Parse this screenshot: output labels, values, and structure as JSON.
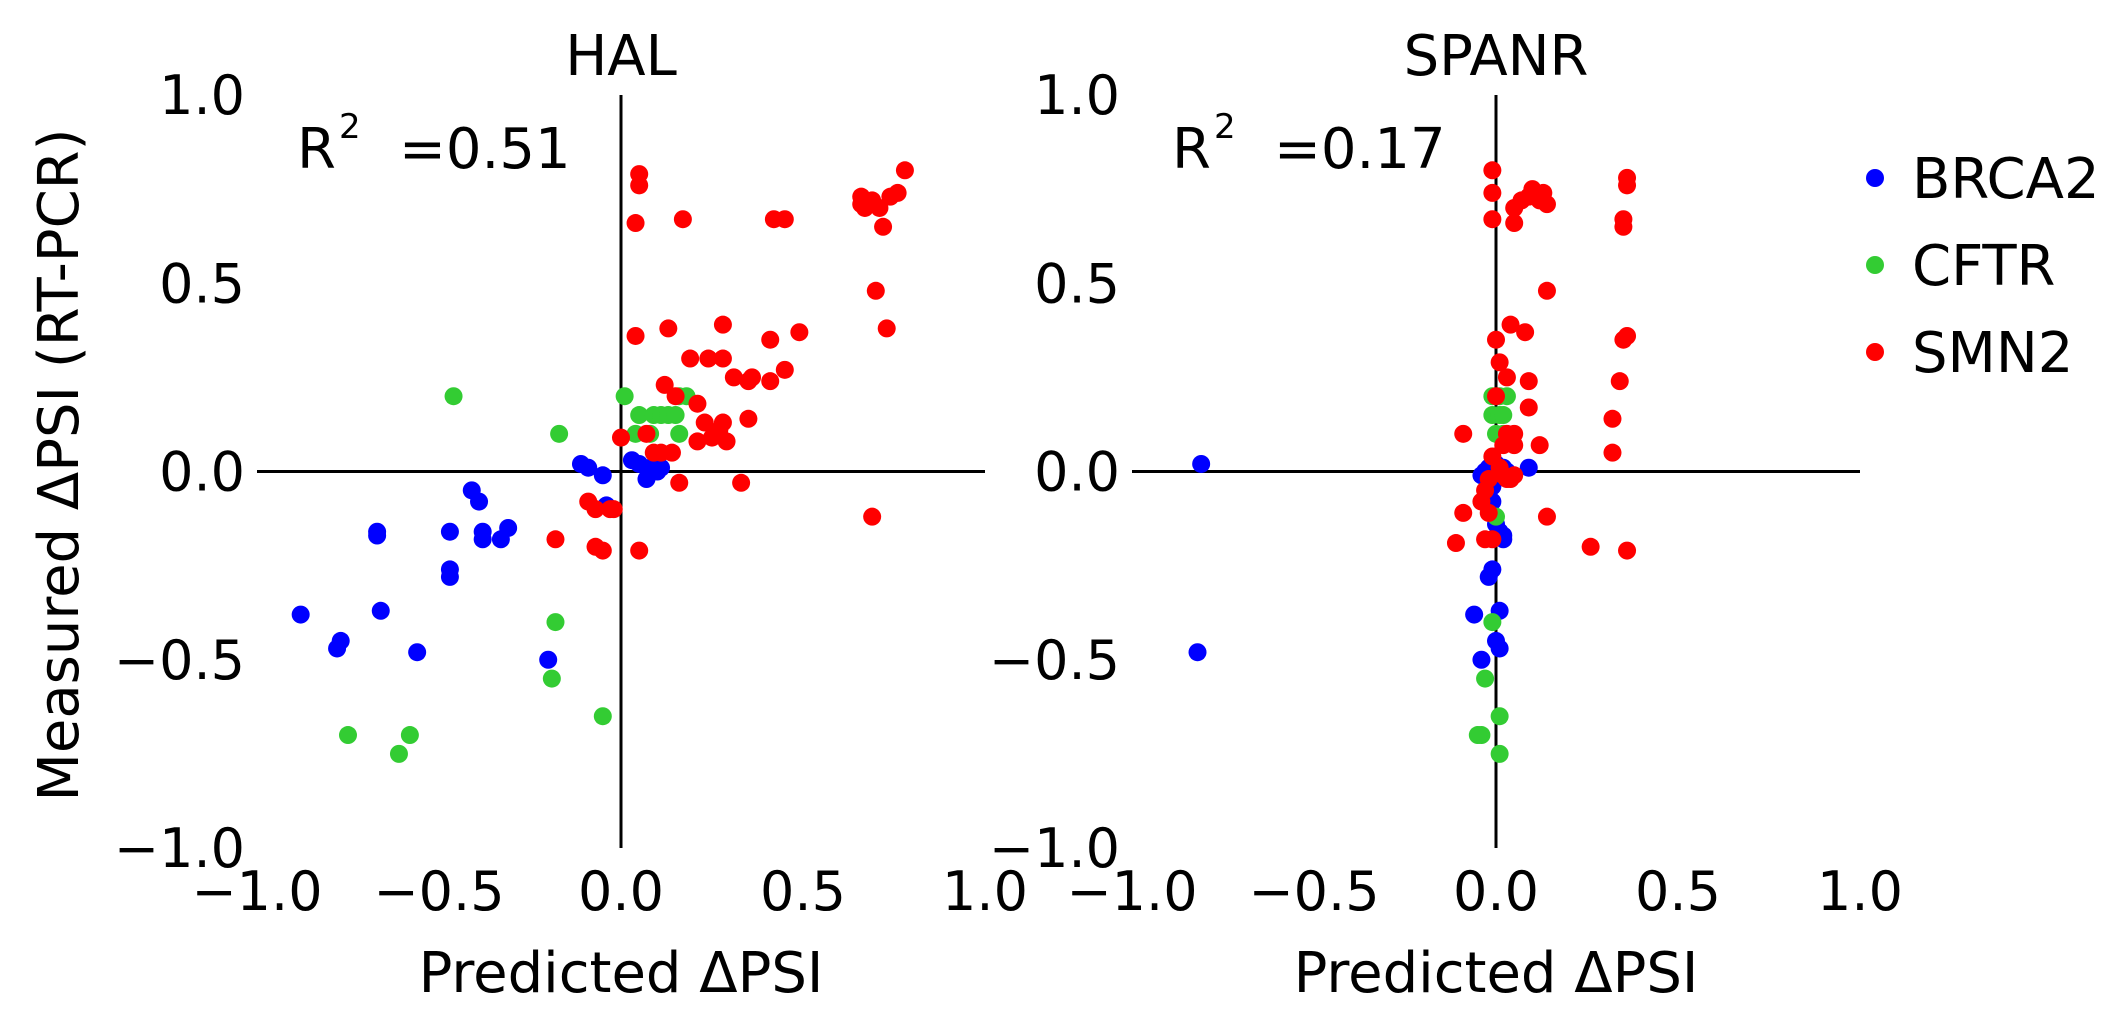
{
  "colors": {
    "BRCA2": "#0000ff",
    "CFTR": "#33cc33",
    "SMN2": "#ff0000",
    "axis": "#000000"
  },
  "legend": {
    "placement": "right",
    "items": [
      "BRCA2",
      "CFTR",
      "SMN2"
    ]
  },
  "chart_data": [
    {
      "type": "scatter",
      "title": "HAL",
      "xlabel": "Predicted ΔPSI",
      "ylabel": "Measured ΔPSI (RT-PCR)",
      "xlim": [
        -1.0,
        1.0
      ],
      "ylim": [
        -1.0,
        1.0
      ],
      "x_ticks": [
        "−1.0",
        "−0.5",
        "0.0",
        "0.5",
        "1.0"
      ],
      "y_ticks": [
        "1.0",
        "0.5",
        "0.0",
        "−0.5",
        "−1.0"
      ],
      "grid": false,
      "annotation": {
        "r2_label": "R",
        "r2_sup": "2",
        "r2_value": "=0.51"
      },
      "series": [
        {
          "name": "BRCA2",
          "points": [
            [
              -0.88,
              -0.38
            ],
            [
              -0.78,
              -0.47
            ],
            [
              -0.77,
              -0.45
            ],
            [
              -0.67,
              -0.16
            ],
            [
              -0.67,
              -0.17
            ],
            [
              -0.66,
              -0.37
            ],
            [
              -0.56,
              -0.48
            ],
            [
              -0.47,
              -0.16
            ],
            [
              -0.47,
              -0.26
            ],
            [
              -0.47,
              -0.28
            ],
            [
              -0.41,
              -0.05
            ],
            [
              -0.39,
              -0.08
            ],
            [
              -0.38,
              -0.16
            ],
            [
              -0.38,
              -0.18
            ],
            [
              -0.33,
              -0.18
            ],
            [
              -0.31,
              -0.15
            ],
            [
              -0.2,
              -0.5
            ],
            [
              -0.11,
              0.02
            ],
            [
              -0.09,
              0.01
            ],
            [
              -0.05,
              -0.01
            ],
            [
              -0.04,
              -0.09
            ],
            [
              0.03,
              0.03
            ],
            [
              0.05,
              0.02
            ],
            [
              0.07,
              -0.02
            ],
            [
              0.08,
              0.01
            ],
            [
              0.1,
              0.0
            ],
            [
              0.11,
              0.01
            ]
          ]
        },
        {
          "name": "CFTR",
          "points": [
            [
              -0.46,
              0.2
            ],
            [
              -0.75,
              -0.7
            ],
            [
              -0.61,
              -0.75
            ],
            [
              -0.58,
              -0.7
            ],
            [
              -0.17,
              0.1
            ],
            [
              -0.18,
              -0.4
            ],
            [
              -0.19,
              -0.55
            ],
            [
              -0.05,
              -0.65
            ],
            [
              0.01,
              0.2
            ],
            [
              0.04,
              0.1
            ],
            [
              0.05,
              0.15
            ],
            [
              0.08,
              0.1
            ],
            [
              0.09,
              0.15
            ],
            [
              0.11,
              0.15
            ],
            [
              0.13,
              0.15
            ],
            [
              0.15,
              0.15
            ],
            [
              0.16,
              0.1
            ],
            [
              0.16,
              0.2
            ],
            [
              0.18,
              0.2
            ]
          ]
        },
        {
          "name": "SMN2",
          "points": [
            [
              0.05,
              0.79
            ],
            [
              0.05,
              0.76
            ],
            [
              0.04,
              0.66
            ],
            [
              0.17,
              0.67
            ],
            [
              0.04,
              0.36
            ],
            [
              0.13,
              0.38
            ],
            [
              0.19,
              0.3
            ],
            [
              0.12,
              0.23
            ],
            [
              0.15,
              0.2
            ],
            [
              0.21,
              0.18
            ],
            [
              0.24,
              0.3
            ],
            [
              0.28,
              0.39
            ],
            [
              0.28,
              0.3
            ],
            [
              0.31,
              0.25
            ],
            [
              0.35,
              0.24
            ],
            [
              0.36,
              0.25
            ],
            [
              0.41,
              0.35
            ],
            [
              0.41,
              0.24
            ],
            [
              0.45,
              0.27
            ],
            [
              0.49,
              0.37
            ],
            [
              0.35,
              0.14
            ],
            [
              0.42,
              0.67
            ],
            [
              0.45,
              0.67
            ],
            [
              0.66,
              0.73
            ],
            [
              0.66,
              0.71
            ],
            [
              0.67,
              0.7
            ],
            [
              0.69,
              0.72
            ],
            [
              0.71,
              0.7
            ],
            [
              0.72,
              0.65
            ],
            [
              0.74,
              0.73
            ],
            [
              0.76,
              0.74
            ],
            [
              0.78,
              0.8
            ],
            [
              0.7,
              0.48
            ],
            [
              0.73,
              0.38
            ],
            [
              0.69,
              -0.12
            ],
            [
              0.33,
              -0.03
            ],
            [
              0.14,
              0.05
            ],
            [
              0.11,
              0.05
            ],
            [
              0.09,
              0.05
            ],
            [
              0.07,
              0.1
            ],
            [
              0.0,
              0.09
            ],
            [
              0.21,
              0.08
            ],
            [
              0.25,
              0.09
            ],
            [
              0.27,
              0.11
            ],
            [
              0.23,
              0.13
            ],
            [
              0.28,
              0.13
            ],
            [
              0.29,
              0.08
            ],
            [
              0.16,
              -0.03
            ],
            [
              -0.09,
              -0.08
            ],
            [
              -0.07,
              -0.1
            ],
            [
              -0.07,
              -0.2
            ],
            [
              -0.05,
              -0.21
            ],
            [
              -0.18,
              -0.18
            ],
            [
              -0.03,
              -0.1
            ],
            [
              -0.02,
              -0.1
            ],
            [
              0.05,
              -0.21
            ]
          ]
        }
      ]
    },
    {
      "type": "scatter",
      "title": "SPANR",
      "xlabel": "Predicted ΔPSI",
      "ylabel": "",
      "xlim": [
        -1.0,
        1.0
      ],
      "ylim": [
        -1.0,
        1.0
      ],
      "x_ticks": [
        "−1.0",
        "−0.5",
        "0.0",
        "0.5",
        "1.0"
      ],
      "y_ticks": [
        "1.0",
        "0.5",
        "0.0",
        "−0.5",
        "−1.0"
      ],
      "grid": false,
      "annotation": {
        "r2_label": "R",
        "r2_sup": "2",
        "r2_value": "=0.17"
      },
      "series": [
        {
          "name": "BRCA2",
          "points": [
            [
              -0.81,
              0.02
            ],
            [
              -0.82,
              -0.48
            ],
            [
              -0.04,
              -0.01
            ],
            [
              -0.03,
              0.0
            ],
            [
              -0.02,
              0.01
            ],
            [
              0.0,
              0.02
            ],
            [
              0.02,
              0.01
            ],
            [
              0.03,
              0.0
            ],
            [
              0.09,
              0.01
            ],
            [
              -0.01,
              -0.08
            ],
            [
              0.0,
              -0.14
            ],
            [
              0.01,
              -0.16
            ],
            [
              0.02,
              -0.17
            ],
            [
              0.02,
              -0.18
            ],
            [
              -0.01,
              -0.26
            ],
            [
              -0.02,
              -0.28
            ],
            [
              -0.06,
              -0.38
            ],
            [
              0.01,
              -0.37
            ],
            [
              0.0,
              -0.45
            ],
            [
              0.01,
              -0.47
            ],
            [
              -0.04,
              -0.5
            ],
            [
              -0.01,
              -0.04
            ],
            [
              0.0,
              -0.02
            ]
          ]
        },
        {
          "name": "CFTR",
          "points": [
            [
              -0.01,
              0.2
            ],
            [
              0.01,
              0.2
            ],
            [
              0.03,
              0.2
            ],
            [
              -0.01,
              0.15
            ],
            [
              0.01,
              0.15
            ],
            [
              0.02,
              0.15
            ],
            [
              0.0,
              0.1
            ],
            [
              0.02,
              0.1
            ],
            [
              -0.01,
              -0.4
            ],
            [
              -0.03,
              -0.55
            ],
            [
              -0.04,
              -0.7
            ],
            [
              -0.05,
              -0.7
            ],
            [
              0.01,
              -0.65
            ],
            [
              0.01,
              -0.75
            ],
            [
              0.0,
              -0.12
            ]
          ]
        },
        {
          "name": "SMN2",
          "points": [
            [
              -0.01,
              0.8
            ],
            [
              -0.01,
              0.74
            ],
            [
              -0.01,
              0.67
            ],
            [
              0.05,
              0.7
            ],
            [
              0.07,
              0.72
            ],
            [
              0.09,
              0.73
            ],
            [
              0.1,
              0.75
            ],
            [
              0.12,
              0.72
            ],
            [
              0.13,
              0.74
            ],
            [
              0.14,
              0.71
            ],
            [
              0.05,
              0.66
            ],
            [
              0.36,
              0.78
            ],
            [
              0.36,
              0.76
            ],
            [
              0.35,
              0.67
            ],
            [
              0.35,
              0.65
            ],
            [
              0.36,
              0.36
            ],
            [
              0.35,
              0.35
            ],
            [
              0.34,
              0.24
            ],
            [
              0.32,
              0.14
            ],
            [
              0.32,
              0.05
            ],
            [
              0.36,
              -0.21
            ],
            [
              0.26,
              -0.2
            ],
            [
              0.14,
              -0.12
            ],
            [
              0.14,
              0.48
            ],
            [
              0.04,
              0.39
            ],
            [
              0.08,
              0.37
            ],
            [
              0.0,
              0.35
            ],
            [
              0.01,
              0.29
            ],
            [
              0.03,
              0.25
            ],
            [
              0.0,
              0.2
            ],
            [
              0.03,
              0.1
            ],
            [
              0.05,
              0.1
            ],
            [
              0.09,
              0.24
            ],
            [
              0.09,
              0.17
            ],
            [
              0.12,
              0.07
            ],
            [
              0.02,
              0.07
            ],
            [
              0.05,
              0.07
            ],
            [
              0.01,
              0.01
            ],
            [
              0.04,
              -0.02
            ],
            [
              0.05,
              -0.01
            ],
            [
              -0.01,
              0.04
            ],
            [
              -0.02,
              -0.02
            ],
            [
              -0.03,
              -0.05
            ],
            [
              -0.04,
              -0.08
            ],
            [
              -0.02,
              -0.11
            ],
            [
              -0.01,
              -0.18
            ],
            [
              -0.03,
              -0.18
            ],
            [
              -0.11,
              -0.19
            ],
            [
              -0.09,
              -0.11
            ],
            [
              -0.09,
              0.1
            ],
            [
              0.02,
              -0.01
            ],
            [
              0.03,
              -0.02
            ]
          ]
        }
      ]
    }
  ]
}
